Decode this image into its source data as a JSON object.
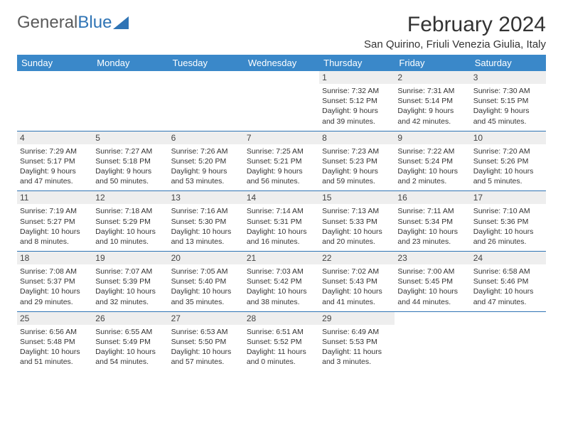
{
  "logo": {
    "text1": "General",
    "text2": "Blue",
    "text_color": "#5a5a5a",
    "accent_color": "#2f74b5"
  },
  "title": "February 2024",
  "subtitle": "San Quirino, Friuli Venezia Giulia, Italy",
  "header_bg": "#3a88c9",
  "header_fg": "#ffffff",
  "border_color": "#2f74b5",
  "daynum_bg": "#eeeeee",
  "columns": [
    "Sunday",
    "Monday",
    "Tuesday",
    "Wednesday",
    "Thursday",
    "Friday",
    "Saturday"
  ],
  "weeks": [
    [
      null,
      null,
      null,
      null,
      {
        "n": "1",
        "sr": "7:32 AM",
        "ss": "5:12 PM",
        "dl": "9 hours and 39 minutes."
      },
      {
        "n": "2",
        "sr": "7:31 AM",
        "ss": "5:14 PM",
        "dl": "9 hours and 42 minutes."
      },
      {
        "n": "3",
        "sr": "7:30 AM",
        "ss": "5:15 PM",
        "dl": "9 hours and 45 minutes."
      }
    ],
    [
      {
        "n": "4",
        "sr": "7:29 AM",
        "ss": "5:17 PM",
        "dl": "9 hours and 47 minutes."
      },
      {
        "n": "5",
        "sr": "7:27 AM",
        "ss": "5:18 PM",
        "dl": "9 hours and 50 minutes."
      },
      {
        "n": "6",
        "sr": "7:26 AM",
        "ss": "5:20 PM",
        "dl": "9 hours and 53 minutes."
      },
      {
        "n": "7",
        "sr": "7:25 AM",
        "ss": "5:21 PM",
        "dl": "9 hours and 56 minutes."
      },
      {
        "n": "8",
        "sr": "7:23 AM",
        "ss": "5:23 PM",
        "dl": "9 hours and 59 minutes."
      },
      {
        "n": "9",
        "sr": "7:22 AM",
        "ss": "5:24 PM",
        "dl": "10 hours and 2 minutes."
      },
      {
        "n": "10",
        "sr": "7:20 AM",
        "ss": "5:26 PM",
        "dl": "10 hours and 5 minutes."
      }
    ],
    [
      {
        "n": "11",
        "sr": "7:19 AM",
        "ss": "5:27 PM",
        "dl": "10 hours and 8 minutes."
      },
      {
        "n": "12",
        "sr": "7:18 AM",
        "ss": "5:29 PM",
        "dl": "10 hours and 10 minutes."
      },
      {
        "n": "13",
        "sr": "7:16 AM",
        "ss": "5:30 PM",
        "dl": "10 hours and 13 minutes."
      },
      {
        "n": "14",
        "sr": "7:14 AM",
        "ss": "5:31 PM",
        "dl": "10 hours and 16 minutes."
      },
      {
        "n": "15",
        "sr": "7:13 AM",
        "ss": "5:33 PM",
        "dl": "10 hours and 20 minutes."
      },
      {
        "n": "16",
        "sr": "7:11 AM",
        "ss": "5:34 PM",
        "dl": "10 hours and 23 minutes."
      },
      {
        "n": "17",
        "sr": "7:10 AM",
        "ss": "5:36 PM",
        "dl": "10 hours and 26 minutes."
      }
    ],
    [
      {
        "n": "18",
        "sr": "7:08 AM",
        "ss": "5:37 PM",
        "dl": "10 hours and 29 minutes."
      },
      {
        "n": "19",
        "sr": "7:07 AM",
        "ss": "5:39 PM",
        "dl": "10 hours and 32 minutes."
      },
      {
        "n": "20",
        "sr": "7:05 AM",
        "ss": "5:40 PM",
        "dl": "10 hours and 35 minutes."
      },
      {
        "n": "21",
        "sr": "7:03 AM",
        "ss": "5:42 PM",
        "dl": "10 hours and 38 minutes."
      },
      {
        "n": "22",
        "sr": "7:02 AM",
        "ss": "5:43 PM",
        "dl": "10 hours and 41 minutes."
      },
      {
        "n": "23",
        "sr": "7:00 AM",
        "ss": "5:45 PM",
        "dl": "10 hours and 44 minutes."
      },
      {
        "n": "24",
        "sr": "6:58 AM",
        "ss": "5:46 PM",
        "dl": "10 hours and 47 minutes."
      }
    ],
    [
      {
        "n": "25",
        "sr": "6:56 AM",
        "ss": "5:48 PM",
        "dl": "10 hours and 51 minutes."
      },
      {
        "n": "26",
        "sr": "6:55 AM",
        "ss": "5:49 PM",
        "dl": "10 hours and 54 minutes."
      },
      {
        "n": "27",
        "sr": "6:53 AM",
        "ss": "5:50 PM",
        "dl": "10 hours and 57 minutes."
      },
      {
        "n": "28",
        "sr": "6:51 AM",
        "ss": "5:52 PM",
        "dl": "11 hours and 0 minutes."
      },
      {
        "n": "29",
        "sr": "6:49 AM",
        "ss": "5:53 PM",
        "dl": "11 hours and 3 minutes."
      },
      null,
      null
    ]
  ],
  "labels": {
    "sunrise": "Sunrise:",
    "sunset": "Sunset:",
    "daylight": "Daylight:"
  }
}
